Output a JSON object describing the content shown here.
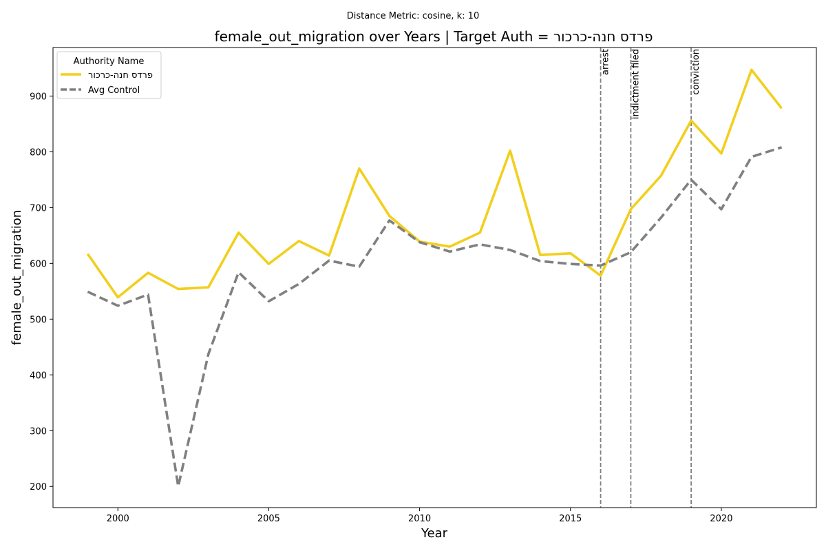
{
  "suptitle": "Distance Metric: cosine, k: 10",
  "chart_data": {
    "type": "line",
    "title": "female_out_migration over Years | Target Auth = פרדס חנה-כרכור",
    "xlabel": "Year",
    "ylabel": "female_out_migration",
    "xlim": [
      1997.85,
      2023.15
    ],
    "ylim": [
      162,
      987
    ],
    "x_ticks": [
      2000,
      2005,
      2010,
      2015,
      2020
    ],
    "y_ticks": [
      200,
      300,
      400,
      500,
      600,
      700,
      800,
      900
    ],
    "grid": false,
    "legend": {
      "title": "Authority Name",
      "placement": "top-left"
    },
    "x": [
      1999,
      2000,
      2001,
      2002,
      2003,
      2004,
      2005,
      2006,
      2007,
      2008,
      2009,
      2010,
      2011,
      2012,
      2013,
      2014,
      2015,
      2016,
      2017,
      2018,
      2019,
      2020,
      2021,
      2022
    ],
    "series": [
      {
        "name": "פרדס חנה-כרכור",
        "color": "#f2cf1d",
        "style": "solid",
        "values": [
          617,
          539,
          583,
          554,
          557,
          655,
          599,
          640,
          614,
          770,
          685,
          639,
          630,
          655,
          802,
          615,
          618,
          578,
          697,
          757,
          856,
          797,
          947,
          878
        ]
      },
      {
        "name": "Avg Control",
        "color": "#808080",
        "style": "dashed",
        "values": [
          549,
          524,
          544,
          200,
          437,
          584,
          532,
          563,
          605,
          594,
          677,
          638,
          621,
          634,
          624,
          604,
          599,
          596,
          620,
          682,
          750,
          697,
          791,
          808
        ]
      }
    ],
    "events": [
      {
        "label": "arrest",
        "x": 2016
      },
      {
        "label": "indictment filed",
        "x": 2017
      },
      {
        "label": "conviction",
        "x": 2019
      }
    ]
  }
}
